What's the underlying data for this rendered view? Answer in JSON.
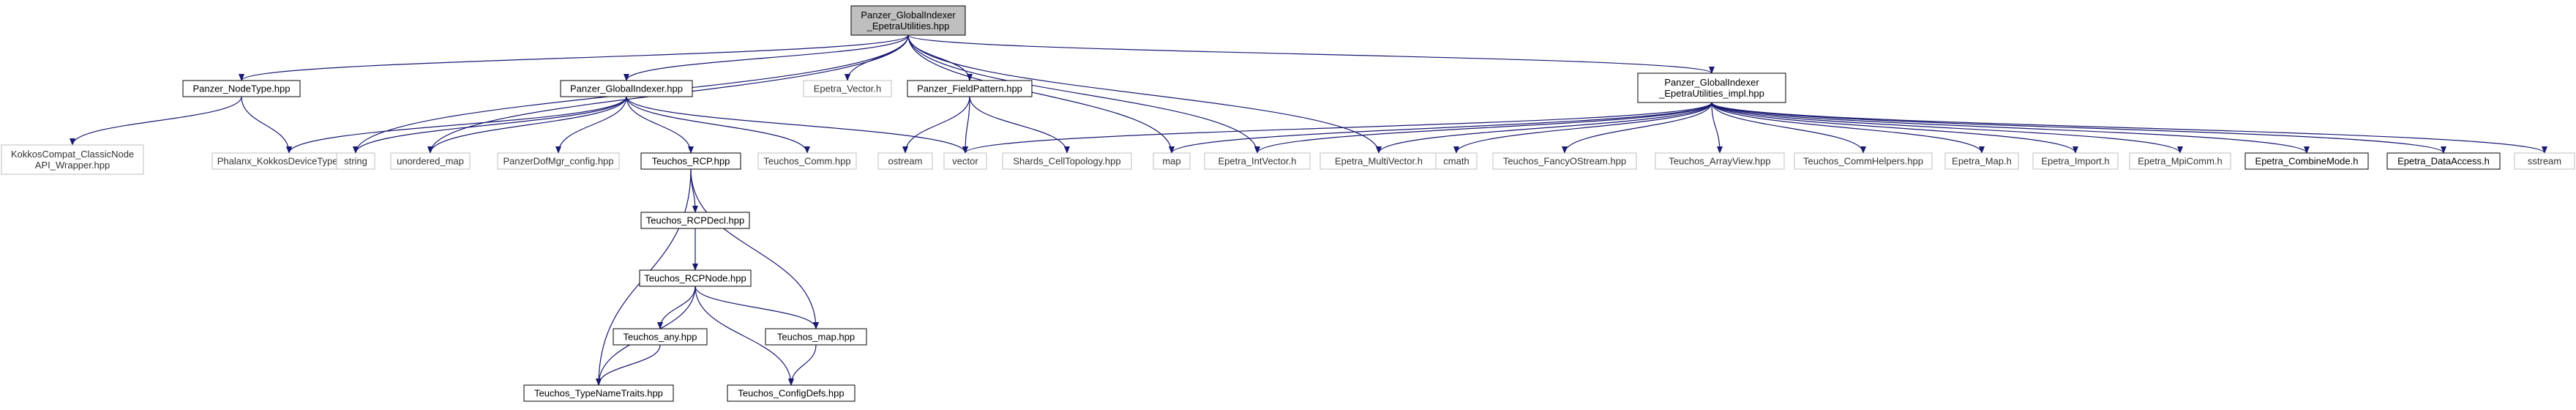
{
  "colors": {
    "edge": "#191970",
    "root_fill": "#bfbfbf",
    "box_border": "#000000",
    "gray_border": "#bfbfbf",
    "background": "#ffffff"
  },
  "nodes": [
    {
      "id": "root",
      "lines": [
        "Panzer_GlobalIndexer",
        "_EpetraUtilities.hpp"
      ],
      "style": "root"
    },
    {
      "id": "nodetype",
      "lines": [
        "Panzer_NodeType.hpp"
      ],
      "style": "box"
    },
    {
      "id": "globalindexer",
      "lines": [
        "Panzer_GlobalIndexer.hpp"
      ],
      "style": "box"
    },
    {
      "id": "epetra_vector",
      "lines": [
        "Epetra_Vector.h"
      ],
      "style": "gray"
    },
    {
      "id": "fieldpattern",
      "lines": [
        "Panzer_FieldPattern.hpp"
      ],
      "style": "box"
    },
    {
      "id": "impl",
      "lines": [
        "Panzer_GlobalIndexer",
        "_EpetraUtilities_impl.hpp"
      ],
      "style": "box"
    },
    {
      "id": "kokkoscompat",
      "lines": [
        "KokkosCompat_ClassicNode",
        "API_Wrapper.hpp"
      ],
      "style": "gray"
    },
    {
      "id": "phalanx",
      "lines": [
        "Phalanx_KokkosDeviceTypes.hpp"
      ],
      "style": "gray"
    },
    {
      "id": "string",
      "lines": [
        "string"
      ],
      "style": "gray"
    },
    {
      "id": "unordered_map",
      "lines": [
        "unordered_map"
      ],
      "style": "gray"
    },
    {
      "id": "dofmgr",
      "lines": [
        "PanzerDofMgr_config.hpp"
      ],
      "style": "gray"
    },
    {
      "id": "rcp",
      "lines": [
        "Teuchos_RCP.hpp"
      ],
      "style": "box"
    },
    {
      "id": "comm",
      "lines": [
        "Teuchos_Comm.hpp"
      ],
      "style": "gray"
    },
    {
      "id": "ostream",
      "lines": [
        "ostream"
      ],
      "style": "gray"
    },
    {
      "id": "vector",
      "lines": [
        "vector"
      ],
      "style": "gray"
    },
    {
      "id": "shards",
      "lines": [
        "Shards_CellTopology.hpp"
      ],
      "style": "gray"
    },
    {
      "id": "map",
      "lines": [
        "map"
      ],
      "style": "gray"
    },
    {
      "id": "intvector",
      "lines": [
        "Epetra_IntVector.h"
      ],
      "style": "gray"
    },
    {
      "id": "multivector",
      "lines": [
        "Epetra_MultiVector.h"
      ],
      "style": "gray"
    },
    {
      "id": "cmath",
      "lines": [
        "cmath"
      ],
      "style": "gray"
    },
    {
      "id": "fancyostream",
      "lines": [
        "Teuchos_FancyOStream.hpp"
      ],
      "style": "gray"
    },
    {
      "id": "arrayview",
      "lines": [
        "Teuchos_ArrayView.hpp"
      ],
      "style": "gray"
    },
    {
      "id": "commhelpers",
      "lines": [
        "Teuchos_CommHelpers.hpp"
      ],
      "style": "gray"
    },
    {
      "id": "epetra_map",
      "lines": [
        "Epetra_Map.h"
      ],
      "style": "gray"
    },
    {
      "id": "epetra_import",
      "lines": [
        "Epetra_Import.h"
      ],
      "style": "gray"
    },
    {
      "id": "mpicomm",
      "lines": [
        "Epetra_MpiComm.h"
      ],
      "style": "gray"
    },
    {
      "id": "combinemode",
      "lines": [
        "Epetra_CombineMode.h"
      ],
      "style": "box"
    },
    {
      "id": "dataaccess",
      "lines": [
        "Epetra_DataAccess.h"
      ],
      "style": "box"
    },
    {
      "id": "sstream",
      "lines": [
        "sstream"
      ],
      "style": "gray"
    },
    {
      "id": "rcpdecl",
      "lines": [
        "Teuchos_RCPDecl.hpp"
      ],
      "style": "box"
    },
    {
      "id": "rcpnode",
      "lines": [
        "Teuchos_RCPNode.hpp"
      ],
      "style": "box"
    },
    {
      "id": "any",
      "lines": [
        "Teuchos_any.hpp"
      ],
      "style": "box"
    },
    {
      "id": "tmap",
      "lines": [
        "Teuchos_map.hpp"
      ],
      "style": "box"
    },
    {
      "id": "typenametraits",
      "lines": [
        "Teuchos_TypeNameTraits.hpp"
      ],
      "style": "box"
    },
    {
      "id": "configdefs",
      "lines": [
        "Teuchos_ConfigDefs.hpp"
      ],
      "style": "box"
    }
  ],
  "edges": [
    [
      "root",
      "nodetype"
    ],
    [
      "root",
      "string"
    ],
    [
      "root",
      "unordered_map"
    ],
    [
      "root",
      "globalindexer"
    ],
    [
      "root",
      "epetra_vector"
    ],
    [
      "root",
      "fieldpattern"
    ],
    [
      "root",
      "map"
    ],
    [
      "root",
      "intvector"
    ],
    [
      "root",
      "multivector"
    ],
    [
      "root",
      "impl"
    ],
    [
      "nodetype",
      "kokkoscompat"
    ],
    [
      "nodetype",
      "phalanx"
    ],
    [
      "globalindexer",
      "phalanx"
    ],
    [
      "globalindexer",
      "string"
    ],
    [
      "globalindexer",
      "unordered_map"
    ],
    [
      "globalindexer",
      "dofmgr"
    ],
    [
      "globalindexer",
      "rcp"
    ],
    [
      "globalindexer",
      "comm"
    ],
    [
      "globalindexer",
      "vector"
    ],
    [
      "fieldpattern",
      "ostream"
    ],
    [
      "fieldpattern",
      "vector"
    ],
    [
      "fieldpattern",
      "shards"
    ],
    [
      "impl",
      "vector"
    ],
    [
      "impl",
      "map"
    ],
    [
      "impl",
      "intvector"
    ],
    [
      "impl",
      "multivector"
    ],
    [
      "impl",
      "cmath"
    ],
    [
      "impl",
      "fancyostream"
    ],
    [
      "impl",
      "arrayview"
    ],
    [
      "impl",
      "commhelpers"
    ],
    [
      "impl",
      "epetra_map"
    ],
    [
      "impl",
      "epetra_import"
    ],
    [
      "impl",
      "mpicomm"
    ],
    [
      "impl",
      "combinemode"
    ],
    [
      "impl",
      "dataaccess"
    ],
    [
      "impl",
      "sstream"
    ],
    [
      "rcp",
      "rcpdecl"
    ],
    [
      "rcp",
      "typenametraits"
    ],
    [
      "rcp",
      "tmap"
    ],
    [
      "rcpdecl",
      "rcpnode"
    ],
    [
      "rcpnode",
      "any"
    ],
    [
      "rcpnode",
      "typenametraits"
    ],
    [
      "rcpnode",
      "tmap"
    ],
    [
      "rcpnode",
      "configdefs"
    ],
    [
      "any",
      "typenametraits"
    ],
    [
      "tmap",
      "configdefs"
    ]
  ]
}
